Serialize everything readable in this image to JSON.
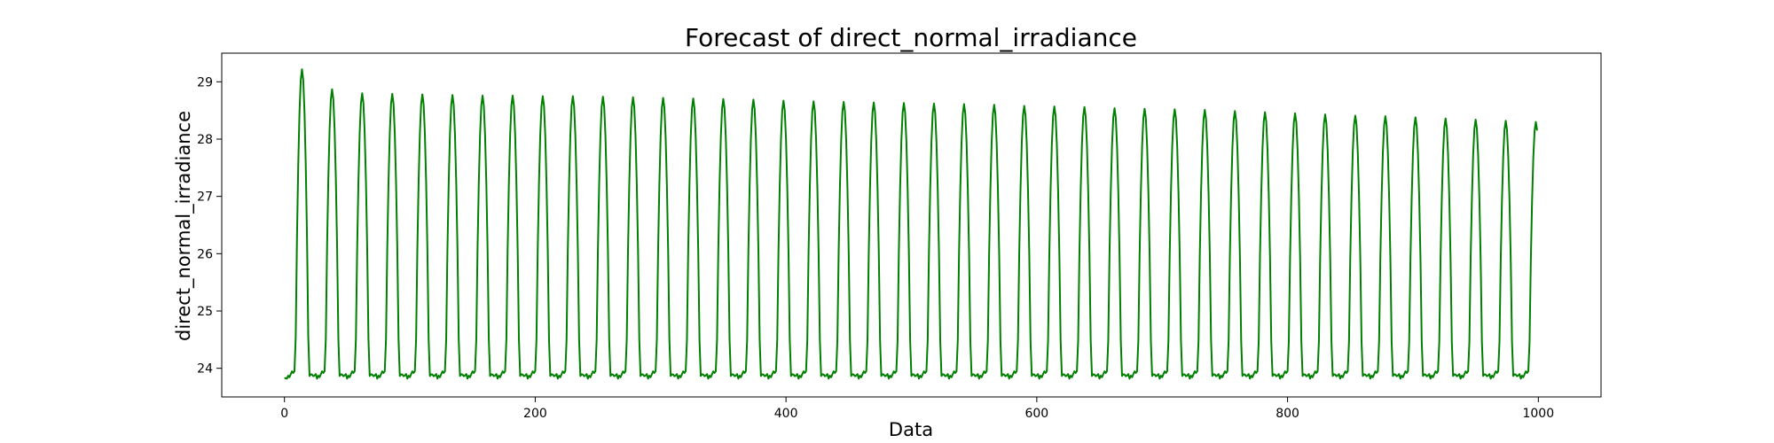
{
  "chart_data": {
    "type": "line",
    "title": "Forecast of direct_normal_irradiance",
    "xlabel": "Data",
    "ylabel": "direct_normal_irradiance",
    "xlim": [
      -50,
      1050
    ],
    "ylim": [
      23.5,
      29.5
    ],
    "xticks": [
      0,
      200,
      400,
      600,
      800,
      1000
    ],
    "yticks": [
      24,
      25,
      26,
      27,
      28,
      29
    ],
    "grid": false,
    "legend": "none",
    "series": [
      {
        "color": "#008000",
        "description": "daily cycle, period 24, 1000 points; baseline ~23.85-24.0, peaks decaying from 29.2 to 28.3",
        "x_start": 0,
        "x_end": 999,
        "period": 24,
        "baseline": [
          23.82,
          24.0
        ],
        "peak_x": [
          14,
          38,
          62,
          86,
          110,
          134,
          158,
          182,
          206,
          230,
          254,
          278,
          302,
          326,
          350,
          374,
          398,
          422,
          446,
          470,
          494,
          518,
          542,
          566,
          590,
          614,
          638,
          662,
          686,
          710,
          734,
          758,
          782,
          806,
          830,
          854,
          878,
          902,
          926,
          950,
          974,
          998
        ],
        "peak_values": [
          29.22,
          28.87,
          28.8,
          28.79,
          28.78,
          28.77,
          28.76,
          28.76,
          28.75,
          28.75,
          28.74,
          28.73,
          28.72,
          28.71,
          28.7,
          28.69,
          28.67,
          28.66,
          28.65,
          28.64,
          28.63,
          28.62,
          28.61,
          28.6,
          28.58,
          28.57,
          28.56,
          28.54,
          28.53,
          28.52,
          28.51,
          28.49,
          28.47,
          28.45,
          28.43,
          28.41,
          28.4,
          28.38,
          28.36,
          28.34,
          28.32,
          28.3
        ],
        "end_value": 28.15
      }
    ]
  }
}
